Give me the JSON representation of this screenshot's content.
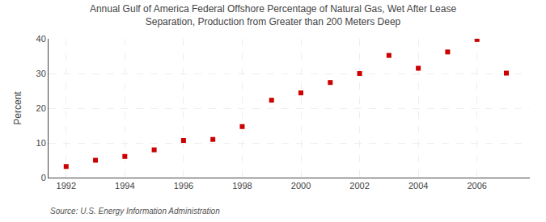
{
  "chart_data": {
    "type": "scatter",
    "title": "Annual Gulf of America Federal Offshore Percentage of Natural Gas, Wet After Lease\nSeparation, Production from Greater than 200 Meters Deep",
    "ylabel": "Percent",
    "annotation": "Source: U.S. Energy Information Administration",
    "x": [
      1992,
      1993,
      1994,
      1995,
      1996,
      1997,
      1998,
      1999,
      2000,
      2001,
      2002,
      2003,
      2004,
      2005,
      2006,
      2007
    ],
    "values": [
      3.2,
      5.0,
      6.1,
      8.0,
      10.7,
      11.0,
      14.7,
      22.3,
      24.4,
      27.4,
      30.0,
      35.2,
      31.5,
      36.2,
      39.8,
      30.1
    ],
    "color": "#cc0000",
    "marker": "square",
    "xlim": [
      1991.4,
      2007.8
    ],
    "xticks": [
      1992,
      1994,
      1996,
      1998,
      2000,
      2002,
      2004,
      2006
    ],
    "ylim": [
      0,
      40
    ],
    "yticks": [
      0,
      10,
      20,
      30,
      40
    ],
    "grid": true
  }
}
